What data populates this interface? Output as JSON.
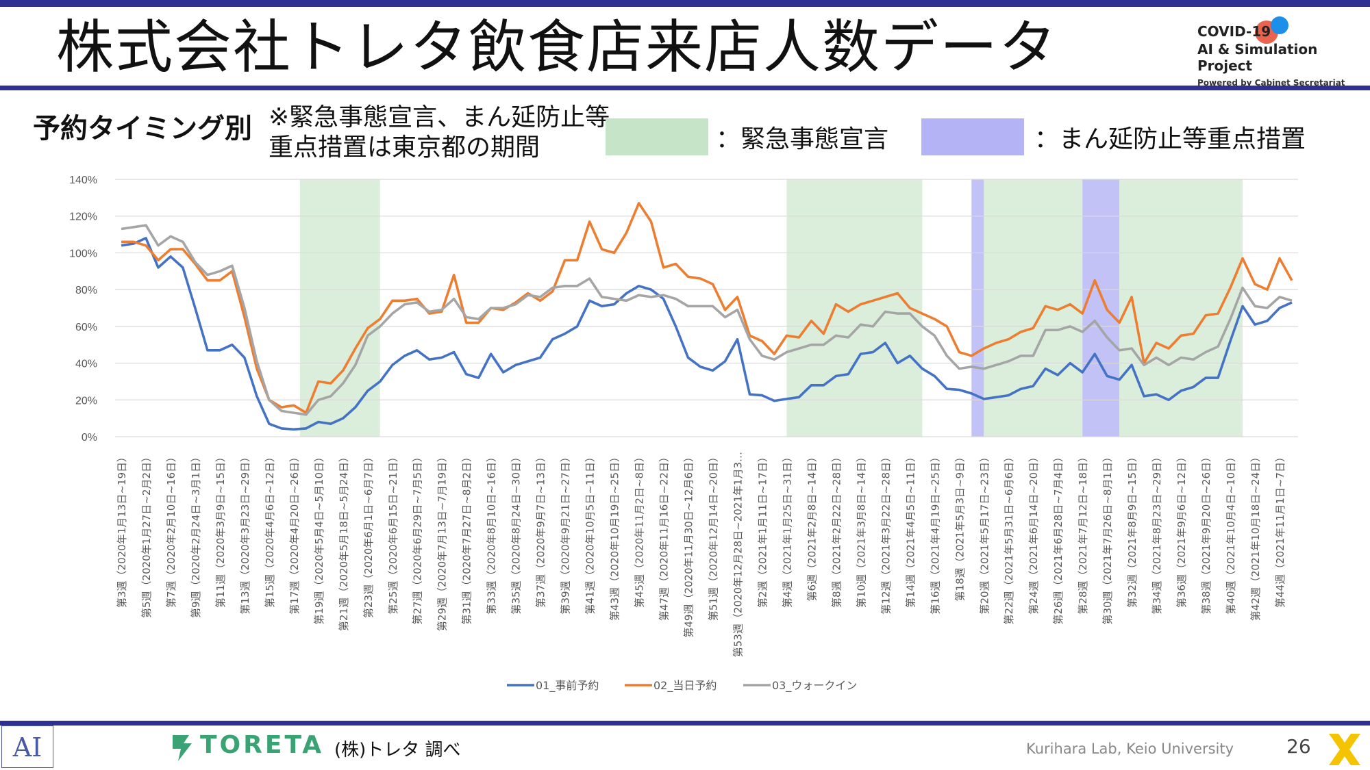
{
  "header": {
    "title": "株式会社トレタ飲食店来店人数データ",
    "brand_line1": "COVID-19",
    "brand_line2": "AI & Simulation Project",
    "brand_line3": "Powered by Cabinet Secretariat"
  },
  "subheader": {
    "subtitle": "予約タイミング別",
    "note": "※緊急事態宣言、まん延防止等重点措置は東京都の期間",
    "legend_emergency_label": "：緊急事態宣言",
    "legend_emergency_color": "#c6e5c8",
    "legend_priority_label": "：まん延防止等重点措置",
    "legend_priority_color": "#b3b3f5"
  },
  "footer": {
    "ai_mark": "AI",
    "company_logo": "TORETA",
    "source": "(株)トレタ 調べ",
    "lab": "Kurihara Lab, Keio University",
    "page": "26"
  },
  "chart_data": {
    "type": "line",
    "ylim": [
      0,
      1.4
    ],
    "yticks": [
      "0%",
      "20%",
      "40%",
      "60%",
      "80%",
      "100%",
      "120%",
      "140%"
    ],
    "grid": true,
    "legend_position": "bottom",
    "x_labels": [
      "第3週（2020年1月13日~19日）",
      "第5週（2020年1月27日~2月2日）",
      "第7週（2020年2月10日~16日）",
      "第9週（2020年2月24日~3月1日）",
      "第11週（2020年3月9日~15日）",
      "第13週（2020年3月23日~29日）",
      "第15週（2020年4月6日~12日）",
      "第17週（2020年4月20日~26日）",
      "第19週（2020年5月4日~5月10日）",
      "第21週（2020年5月18日~5月24日）",
      "第23週（2020年6月1日~6月7日）",
      "第25週（2020年6月15日~21日）",
      "第27週（2020年6月29日~7月5日）",
      "第29週（2020年7月13日~7月19日）",
      "第31週（2020年7月27日~8月2日）",
      "第33週（2020年8月10日~16日）",
      "第35週（2020年8月24日~30日）",
      "第37週（2020年9月7日~13日）",
      "第39週（2020年9月21日~27日）",
      "第41週（2020年10月5日~11日）",
      "第43週（2020年10月19日~25日）",
      "第45週（2020年11月2日~8日）",
      "第47週（2020年11月16日~22日）",
      "第49週（2020年11月30日~12月6日）",
      "第51週（2020年12月14日~20日）",
      "第53週（2020年12月28日~2021年1月3…",
      "第2週（2021年1月11日~17日）",
      "第4週（2021年1月25日~31日）",
      "第6週（2021年2月8日~14日）",
      "第8週（2021年2月22日~28日）",
      "第10週（2021年3月8日~14日）",
      "第12週（2021年3月22日~28日）",
      "第14週（2021年4月5日~11日）",
      "第16週（2021年4月19日~25日）",
      "第18週（2021年5月3日~9日）",
      "第20週（2021年5月17日~23日）",
      "第22週（2021年5月31日~6月6日）",
      "第24週（2021年6月14日~20日）",
      "第26週（2021年6月28日~7月4日）",
      "第28週（2021年7月12日~18日）",
      "第30週（2021年7月26日~8月1日）",
      "第32週（2021年8月9日~15日）",
      "第34週（2021年8月23日~29日）",
      "第36週（2021年9月6日~12日）",
      "第38週（2021年9月20日~26日）",
      "第40週（2021年10月4日~10日）",
      "第42週（2021年10月18日~24日）",
      "第44週（2021年11月1日~7日）"
    ],
    "bands": [
      {
        "kind": "emergency",
        "from": 15,
        "to": 21.5
      },
      {
        "kind": "emergency",
        "from": 54.5,
        "to": 65.5
      },
      {
        "kind": "priority",
        "from": 69.5,
        "to": 70.5
      },
      {
        "kind": "emergency",
        "from": 70.5,
        "to": 78.5
      },
      {
        "kind": "priority",
        "from": 78.5,
        "to": 81.5
      },
      {
        "kind": "emergency",
        "from": 81.5,
        "to": 91.5
      }
    ],
    "series": [
      {
        "name": "01_事前予約",
        "color": "#4472c4",
        "values": [
          1.04,
          1.05,
          1.08,
          0.92,
          0.98,
          0.92,
          0.7,
          0.47,
          0.47,
          0.5,
          0.43,
          0.22,
          0.07,
          0.045,
          0.04,
          0.045,
          0.08,
          0.07,
          0.1,
          0.16,
          0.25,
          0.3,
          0.39,
          0.44,
          0.47,
          0.42,
          0.43,
          0.46,
          0.34,
          0.32,
          0.45,
          0.35,
          0.39,
          0.41,
          0.43,
          0.53,
          0.56,
          0.6,
          0.74,
          0.71,
          0.72,
          0.78,
          0.82,
          0.8,
          0.75,
          0.6,
          0.43,
          0.38,
          0.36,
          0.41,
          0.53,
          0.23,
          0.225,
          0.195,
          0.205,
          0.215,
          0.28,
          0.28,
          0.33,
          0.34,
          0.45,
          0.46,
          0.51,
          0.4,
          0.44,
          0.37,
          0.33,
          0.26,
          0.255,
          0.235,
          0.205,
          0.215,
          0.225,
          0.26,
          0.275,
          0.37,
          0.335,
          0.4,
          0.35,
          0.45,
          0.33,
          0.31,
          0.39,
          0.22,
          0.23,
          0.2,
          0.25,
          0.27,
          0.32,
          0.32,
          0.52,
          0.71,
          0.61,
          0.63,
          0.7,
          0.73
        ]
      },
      {
        "name": "02_当日予約",
        "color": "#ed7d31",
        "values": [
          1.06,
          1.06,
          1.04,
          0.96,
          1.02,
          1.02,
          0.94,
          0.85,
          0.85,
          0.9,
          0.65,
          0.37,
          0.2,
          0.16,
          0.17,
          0.13,
          0.3,
          0.29,
          0.36,
          0.48,
          0.59,
          0.64,
          0.74,
          0.74,
          0.75,
          0.67,
          0.68,
          0.88,
          0.62,
          0.62,
          0.7,
          0.69,
          0.73,
          0.78,
          0.74,
          0.79,
          0.96,
          0.96,
          1.17,
          1.02,
          1.0,
          1.11,
          1.27,
          1.17,
          0.92,
          0.94,
          0.87,
          0.86,
          0.83,
          0.69,
          0.76,
          0.55,
          0.52,
          0.45,
          0.55,
          0.54,
          0.63,
          0.56,
          0.72,
          0.68,
          0.72,
          0.74,
          0.76,
          0.78,
          0.7,
          0.67,
          0.64,
          0.6,
          0.46,
          0.44,
          0.48,
          0.51,
          0.53,
          0.57,
          0.59,
          0.71,
          0.69,
          0.72,
          0.67,
          0.85,
          0.69,
          0.62,
          0.76,
          0.4,
          0.51,
          0.48,
          0.55,
          0.56,
          0.66,
          0.67,
          0.81,
          0.97,
          0.83,
          0.8,
          0.97,
          0.85
        ]
      },
      {
        "name": "03_ウォークイン",
        "color": "#a5a5a5",
        "values": [
          1.13,
          1.14,
          1.15,
          1.04,
          1.09,
          1.06,
          0.95,
          0.88,
          0.9,
          0.93,
          0.7,
          0.41,
          0.2,
          0.14,
          0.13,
          0.12,
          0.2,
          0.22,
          0.29,
          0.39,
          0.55,
          0.6,
          0.67,
          0.72,
          0.73,
          0.68,
          0.69,
          0.75,
          0.65,
          0.64,
          0.7,
          0.7,
          0.72,
          0.77,
          0.76,
          0.81,
          0.82,
          0.82,
          0.86,
          0.76,
          0.75,
          0.74,
          0.77,
          0.76,
          0.77,
          0.75,
          0.71,
          0.71,
          0.71,
          0.65,
          0.69,
          0.53,
          0.44,
          0.42,
          0.46,
          0.48,
          0.5,
          0.5,
          0.55,
          0.54,
          0.61,
          0.6,
          0.68,
          0.67,
          0.67,
          0.6,
          0.55,
          0.44,
          0.37,
          0.38,
          0.37,
          0.39,
          0.41,
          0.44,
          0.44,
          0.58,
          0.58,
          0.6,
          0.57,
          0.63,
          0.54,
          0.47,
          0.48,
          0.39,
          0.43,
          0.39,
          0.43,
          0.42,
          0.46,
          0.49,
          0.64,
          0.81,
          0.71,
          0.7,
          0.76,
          0.74
        ]
      }
    ]
  }
}
